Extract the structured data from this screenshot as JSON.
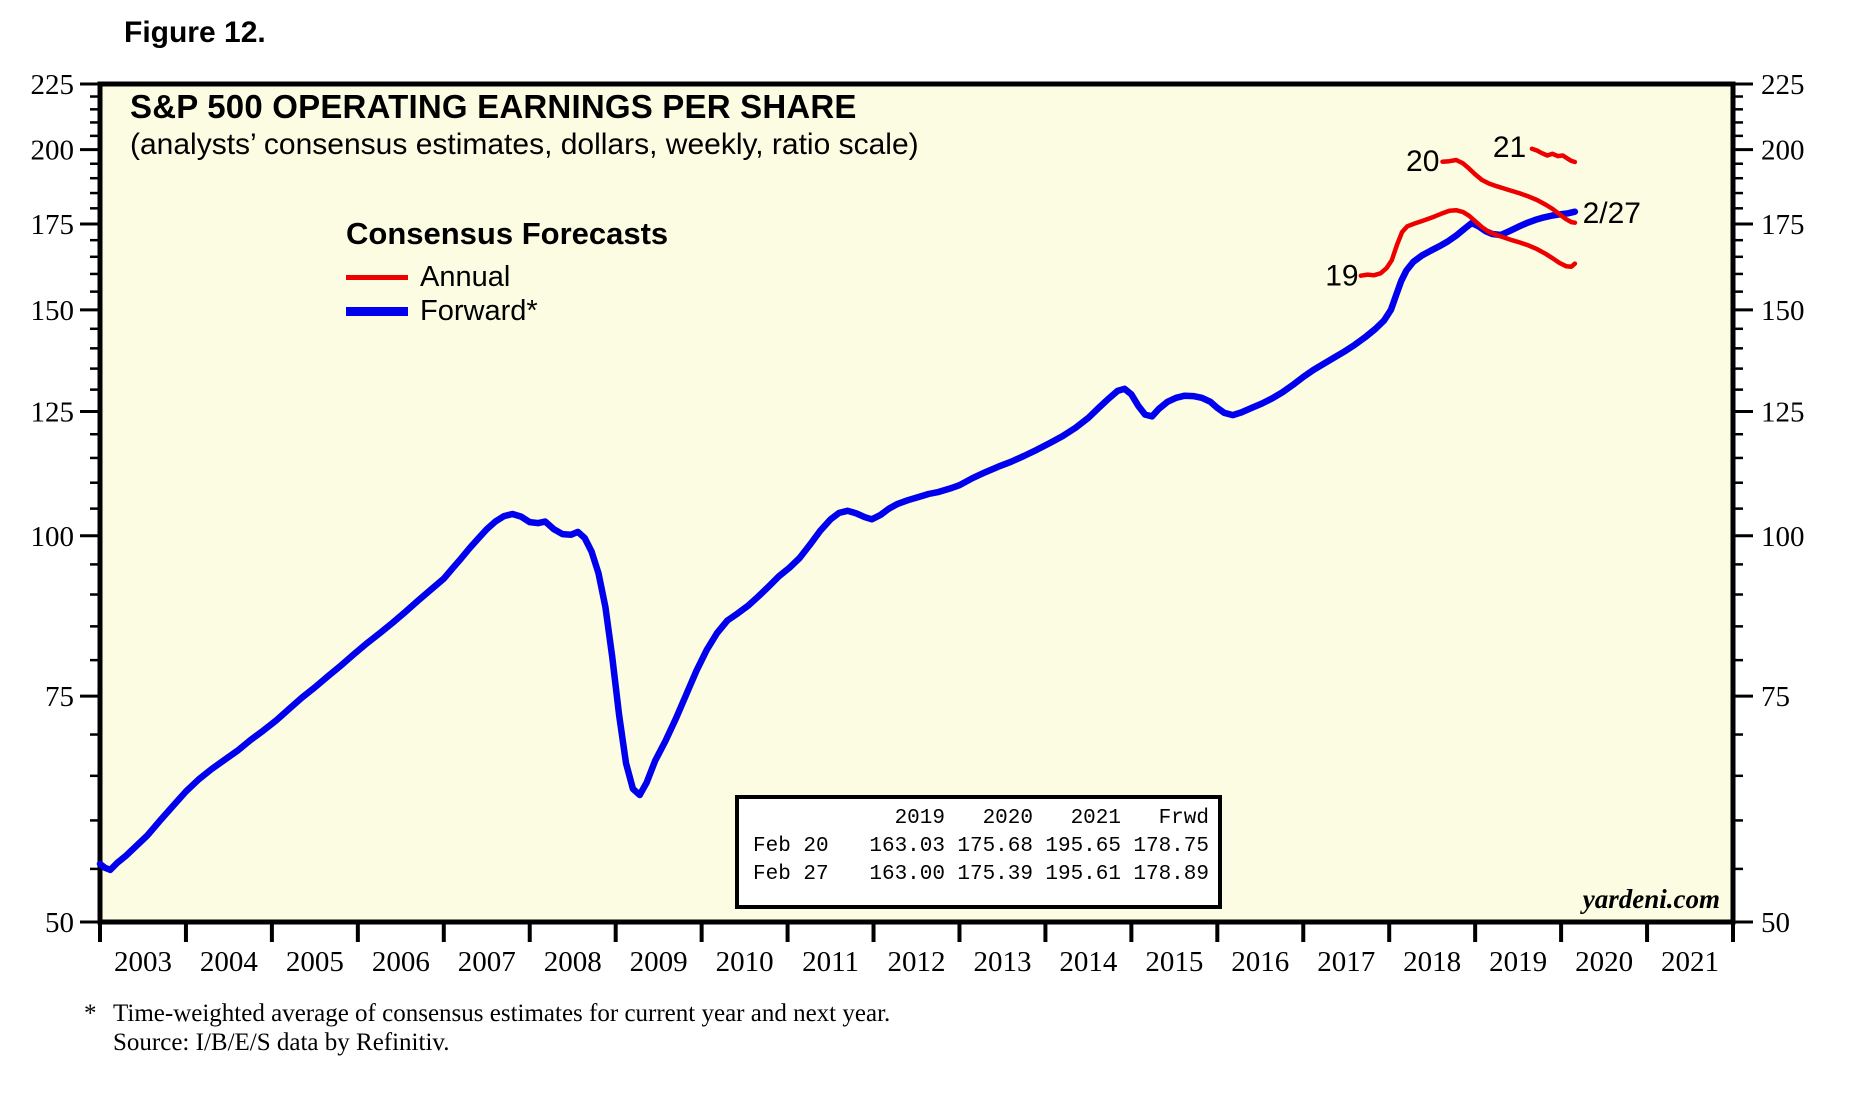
{
  "figure_label": "Figure 12.",
  "header": {
    "title": "S&P 500 OPERATING EARNINGS PER SHARE",
    "subtitle": "(analysts’ consensus estimates, dollars, weekly, ratio scale)"
  },
  "legend": {
    "title": "Consensus Forecasts",
    "items": [
      {
        "label": "Annual",
        "color": "#ee0000"
      },
      {
        "label": "Forward*",
        "color": "#0000ee"
      }
    ]
  },
  "inset_table": {
    "headers": [
      "",
      "2019",
      "2020",
      "2021",
      "Frwd"
    ],
    "rows": [
      [
        "Feb 20",
        "163.03",
        "175.68",
        "195.65",
        "178.75"
      ],
      [
        "Feb 27",
        "163.00",
        "175.39",
        "195.61",
        "178.89"
      ]
    ]
  },
  "watermark": "yardeni.com",
  "footnote": {
    "marker": "*",
    "line1": "Time-weighted average of consensus estimates for current year and next year.",
    "line2": "Source: I/B/E/S data by Refinitiv."
  },
  "colors": {
    "annual_red": "#ee0000",
    "forward_blue": "#0000ee",
    "plot_background": "#fcfce2",
    "axis_black": "#000000"
  },
  "chart_data": {
    "type": "line",
    "title": "S&P 500 OPERATING EARNINGS PER SHARE",
    "subtitle": "(analysts’ consensus estimates, dollars, weekly, ratio scale)",
    "x_axis": {
      "scale": "linear",
      "domain": [
        2003,
        2022
      ],
      "tick_interval_years": 1,
      "year_labels": [
        "2003",
        "2004",
        "2005",
        "2006",
        "2007",
        "2008",
        "2009",
        "2010",
        "2011",
        "2012",
        "2013",
        "2014",
        "2015",
        "2016",
        "2017",
        "2018",
        "2019",
        "2020",
        "2021"
      ]
    },
    "y_axis": {
      "scale": "log",
      "domain": [
        50,
        225
      ],
      "sides": "both",
      "major_ticks": [
        225,
        200,
        175,
        150,
        125,
        100,
        75,
        50
      ],
      "minor_tick_step": 5,
      "grid": false
    },
    "legend_position": "upper-left-inside",
    "series": [
      {
        "name": "Forward",
        "legend": "Forward*",
        "color": "#0000ee",
        "stroke_width": 6.5,
        "points": [
          [
            2003.0,
            55.5
          ],
          [
            2003.06,
            55.1
          ],
          [
            2003.12,
            54.9
          ],
          [
            2003.2,
            55.6
          ],
          [
            2003.3,
            56.3
          ],
          [
            2003.42,
            57.3
          ],
          [
            2003.55,
            58.4
          ],
          [
            2003.7,
            60.0
          ],
          [
            2003.85,
            61.6
          ],
          [
            2004.0,
            63.2
          ],
          [
            2004.15,
            64.6
          ],
          [
            2004.3,
            65.8
          ],
          [
            2004.45,
            66.9
          ],
          [
            2004.6,
            68.0
          ],
          [
            2004.75,
            69.3
          ],
          [
            2004.9,
            70.5
          ],
          [
            2005.05,
            71.8
          ],
          [
            2005.2,
            73.3
          ],
          [
            2005.35,
            74.8
          ],
          [
            2005.5,
            76.2
          ],
          [
            2005.65,
            77.7
          ],
          [
            2005.8,
            79.2
          ],
          [
            2005.95,
            80.8
          ],
          [
            2006.1,
            82.4
          ],
          [
            2006.25,
            83.9
          ],
          [
            2006.4,
            85.5
          ],
          [
            2006.55,
            87.2
          ],
          [
            2006.7,
            89.0
          ],
          [
            2006.85,
            90.8
          ],
          [
            2007.0,
            92.6
          ],
          [
            2007.1,
            94.3
          ],
          [
            2007.2,
            96.0
          ],
          [
            2007.3,
            97.8
          ],
          [
            2007.4,
            99.5
          ],
          [
            2007.5,
            101.2
          ],
          [
            2007.6,
            102.6
          ],
          [
            2007.7,
            103.6
          ],
          [
            2007.8,
            104.0
          ],
          [
            2007.9,
            103.5
          ],
          [
            2008.0,
            102.5
          ],
          [
            2008.1,
            102.3
          ],
          [
            2008.18,
            102.6
          ],
          [
            2008.28,
            101.2
          ],
          [
            2008.38,
            100.3
          ],
          [
            2008.48,
            100.2
          ],
          [
            2008.56,
            100.7
          ],
          [
            2008.64,
            99.6
          ],
          [
            2008.72,
            97.2
          ],
          [
            2008.8,
            93.5
          ],
          [
            2008.88,
            88.0
          ],
          [
            2008.96,
            80.5
          ],
          [
            2009.04,
            72.5
          ],
          [
            2009.12,
            66.5
          ],
          [
            2009.2,
            63.5
          ],
          [
            2009.28,
            62.8
          ],
          [
            2009.36,
            64.2
          ],
          [
            2009.46,
            66.8
          ],
          [
            2009.58,
            69.2
          ],
          [
            2009.7,
            72.0
          ],
          [
            2009.82,
            75.2
          ],
          [
            2009.94,
            78.5
          ],
          [
            2010.06,
            81.5
          ],
          [
            2010.18,
            84.0
          ],
          [
            2010.3,
            85.9
          ],
          [
            2010.42,
            87.0
          ],
          [
            2010.54,
            88.2
          ],
          [
            2010.66,
            89.7
          ],
          [
            2010.78,
            91.3
          ],
          [
            2010.9,
            93.0
          ],
          [
            2011.02,
            94.4
          ],
          [
            2011.14,
            96.1
          ],
          [
            2011.26,
            98.4
          ],
          [
            2011.38,
            100.9
          ],
          [
            2011.5,
            103.0
          ],
          [
            2011.6,
            104.2
          ],
          [
            2011.7,
            104.6
          ],
          [
            2011.8,
            104.1
          ],
          [
            2011.9,
            103.4
          ],
          [
            2011.98,
            103.0
          ],
          [
            2012.08,
            103.8
          ],
          [
            2012.18,
            105.0
          ],
          [
            2012.28,
            105.9
          ],
          [
            2012.4,
            106.6
          ],
          [
            2012.52,
            107.2
          ],
          [
            2012.64,
            107.8
          ],
          [
            2012.76,
            108.2
          ],
          [
            2012.88,
            108.8
          ],
          [
            2013.0,
            109.5
          ],
          [
            2013.15,
            110.9
          ],
          [
            2013.3,
            112.1
          ],
          [
            2013.45,
            113.2
          ],
          [
            2013.6,
            114.2
          ],
          [
            2013.75,
            115.4
          ],
          [
            2013.9,
            116.7
          ],
          [
            2014.05,
            118.1
          ],
          [
            2014.2,
            119.6
          ],
          [
            2014.35,
            121.4
          ],
          [
            2014.5,
            123.6
          ],
          [
            2014.62,
            125.8
          ],
          [
            2014.74,
            128.0
          ],
          [
            2014.84,
            129.7
          ],
          [
            2014.92,
            130.2
          ],
          [
            2015.0,
            128.9
          ],
          [
            2015.08,
            126.3
          ],
          [
            2015.16,
            124.3
          ],
          [
            2015.24,
            123.9
          ],
          [
            2015.32,
            125.6
          ],
          [
            2015.42,
            127.2
          ],
          [
            2015.52,
            128.1
          ],
          [
            2015.62,
            128.6
          ],
          [
            2015.72,
            128.5
          ],
          [
            2015.82,
            128.1
          ],
          [
            2015.92,
            127.2
          ],
          [
            2016.0,
            125.8
          ],
          [
            2016.08,
            124.7
          ],
          [
            2016.18,
            124.2
          ],
          [
            2016.28,
            124.8
          ],
          [
            2016.4,
            125.8
          ],
          [
            2016.52,
            126.8
          ],
          [
            2016.64,
            128.0
          ],
          [
            2016.76,
            129.4
          ],
          [
            2016.88,
            131.1
          ],
          [
            2017.0,
            133.0
          ],
          [
            2017.12,
            134.7
          ],
          [
            2017.24,
            136.2
          ],
          [
            2017.36,
            137.7
          ],
          [
            2017.48,
            139.2
          ],
          [
            2017.6,
            140.9
          ],
          [
            2017.72,
            142.8
          ],
          [
            2017.84,
            145.0
          ],
          [
            2017.94,
            147.2
          ],
          [
            2018.02,
            150.0
          ],
          [
            2018.08,
            154.0
          ],
          [
            2018.14,
            158.0
          ],
          [
            2018.2,
            161.0
          ],
          [
            2018.28,
            163.5
          ],
          [
            2018.38,
            165.4
          ],
          [
            2018.48,
            166.8
          ],
          [
            2018.58,
            168.1
          ],
          [
            2018.68,
            169.6
          ],
          [
            2018.78,
            171.4
          ],
          [
            2018.88,
            173.6
          ],
          [
            2018.96,
            175.3
          ],
          [
            2019.04,
            174.3
          ],
          [
            2019.12,
            172.8
          ],
          [
            2019.2,
            171.9
          ],
          [
            2019.3,
            171.6
          ],
          [
            2019.4,
            172.8
          ],
          [
            2019.5,
            174.1
          ],
          [
            2019.6,
            175.3
          ],
          [
            2019.7,
            176.3
          ],
          [
            2019.8,
            177.1
          ],
          [
            2019.9,
            177.7
          ],
          [
            2020.0,
            178.1
          ],
          [
            2020.08,
            178.4
          ],
          [
            2020.16,
            178.9
          ]
        ]
      },
      {
        "name": "Annual 2019",
        "legend": "Annual",
        "annotation": "19",
        "color": "#ee0000",
        "stroke_width": 4.5,
        "points": [
          [
            2017.67,
            159.5
          ],
          [
            2017.75,
            159.8
          ],
          [
            2017.82,
            159.6
          ],
          [
            2017.9,
            160.2
          ],
          [
            2017.97,
            161.7
          ],
          [
            2018.03,
            164.0
          ],
          [
            2018.09,
            168.5
          ],
          [
            2018.15,
            172.5
          ],
          [
            2018.21,
            174.3
          ],
          [
            2018.3,
            175.2
          ],
          [
            2018.4,
            176.1
          ],
          [
            2018.5,
            177.1
          ],
          [
            2018.6,
            178.2
          ],
          [
            2018.7,
            179.2
          ],
          [
            2018.78,
            179.4
          ],
          [
            2018.86,
            178.8
          ],
          [
            2018.93,
            177.6
          ],
          [
            2019.0,
            175.9
          ],
          [
            2019.08,
            174.0
          ],
          [
            2019.16,
            172.5
          ],
          [
            2019.25,
            171.6
          ],
          [
            2019.34,
            170.8
          ],
          [
            2019.43,
            170.0
          ],
          [
            2019.52,
            169.3
          ],
          [
            2019.62,
            168.4
          ],
          [
            2019.72,
            167.3
          ],
          [
            2019.82,
            165.9
          ],
          [
            2019.9,
            164.6
          ],
          [
            2019.98,
            163.2
          ],
          [
            2020.06,
            162.2
          ],
          [
            2020.12,
            162.1
          ],
          [
            2020.16,
            163.0
          ]
        ]
      },
      {
        "name": "Annual 2020",
        "legend": "Annual",
        "annotation": "20",
        "color": "#ee0000",
        "stroke_width": 4.5,
        "points": [
          [
            2018.62,
            195.7
          ],
          [
            2018.7,
            195.9
          ],
          [
            2018.78,
            196.3
          ],
          [
            2018.86,
            195.1
          ],
          [
            2018.93,
            193.3
          ],
          [
            2019.0,
            191.3
          ],
          [
            2019.08,
            189.4
          ],
          [
            2019.16,
            188.2
          ],
          [
            2019.25,
            187.3
          ],
          [
            2019.34,
            186.5
          ],
          [
            2019.43,
            185.7
          ],
          [
            2019.52,
            184.9
          ],
          [
            2019.62,
            183.9
          ],
          [
            2019.72,
            182.7
          ],
          [
            2019.82,
            181.2
          ],
          [
            2019.9,
            179.8
          ],
          [
            2019.98,
            178.1
          ],
          [
            2020.06,
            176.5
          ],
          [
            2020.12,
            175.6
          ],
          [
            2020.16,
            175.4
          ]
        ]
      },
      {
        "name": "Annual 2021",
        "legend": "Annual",
        "annotation": "21",
        "color": "#ee0000",
        "stroke_width": 4.5,
        "points": [
          [
            2019.66,
            200.3
          ],
          [
            2019.72,
            199.7
          ],
          [
            2019.78,
            198.7
          ],
          [
            2019.84,
            197.9
          ],
          [
            2019.9,
            198.5
          ],
          [
            2019.96,
            197.7
          ],
          [
            2020.02,
            197.9
          ],
          [
            2020.07,
            196.9
          ],
          [
            2020.12,
            196.0
          ],
          [
            2020.16,
            195.6
          ]
        ]
      }
    ],
    "annotations": [
      {
        "text": "19",
        "color": "#ee0000",
        "year": 2017.45,
        "value": 159.5,
        "anchor": "middle"
      },
      {
        "text": "20",
        "color": "#ee0000",
        "year": 2018.39,
        "value": 196.0,
        "anchor": "middle"
      },
      {
        "text": "21",
        "color": "#ee0000",
        "year": 2019.4,
        "value": 201.0,
        "anchor": "middle"
      },
      {
        "text": "2/27",
        "color": "#0000ee",
        "year": 2020.25,
        "value": 178.5,
        "anchor": "start"
      }
    ],
    "last_observation_label": "2/27"
  }
}
